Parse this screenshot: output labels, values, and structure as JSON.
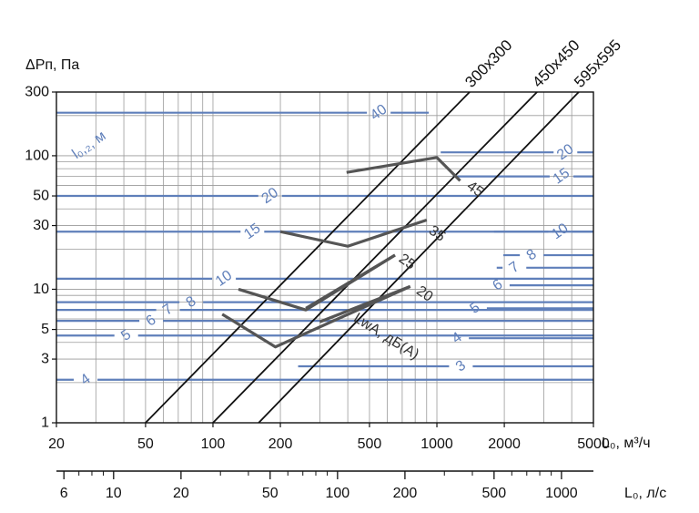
{
  "chart_data": {
    "type": "line",
    "title": "",
    "ylabel": "ΔPп, Па",
    "xlabel": "L₀, м³/ч",
    "x2label": "L₀, л/с",
    "xscale": "log",
    "yscale": "log",
    "xlim": [
      20,
      5000
    ],
    "ylim": [
      1,
      300
    ],
    "grid": true,
    "x_ticks": [
      {
        "value": 20,
        "label": "20"
      },
      {
        "value": 50,
        "label": "50"
      },
      {
        "value": 100,
        "label": "100"
      },
      {
        "value": 200,
        "label": "200"
      },
      {
        "value": 500,
        "label": "500"
      },
      {
        "value": 1000,
        "label": "1000"
      },
      {
        "value": 2000,
        "label": "2000"
      },
      {
        "value": 5000,
        "label": "5000"
      }
    ],
    "y_ticks": [
      {
        "value": 1,
        "label": "1"
      },
      {
        "value": 3,
        "label": "3"
      },
      {
        "value": 5,
        "label": "5"
      },
      {
        "value": 10,
        "label": "10"
      },
      {
        "value": 30,
        "label": "30"
      },
      {
        "value": 50,
        "label": "50"
      },
      {
        "value": 100,
        "label": "100"
      },
      {
        "value": 300,
        "label": "300"
      }
    ],
    "x2_ticks": [
      {
        "value": 6,
        "label": "6"
      },
      {
        "value": 10,
        "label": "10"
      },
      {
        "value": 20,
        "label": "20"
      },
      {
        "value": 50,
        "label": "50"
      },
      {
        "value": 100,
        "label": "100"
      },
      {
        "value": 200,
        "label": "200"
      },
      {
        "value": 500,
        "label": "500"
      },
      {
        "value": 1000,
        "label": "1000"
      }
    ],
    "x2_minor": [
      7,
      8,
      9,
      30,
      40,
      60,
      70,
      80,
      90,
      300,
      400,
      600,
      700,
      800,
      900
    ],
    "size_lines": [
      {
        "name": "300x300",
        "x": [
          50,
          1400
        ],
        "y": [
          1,
          300
        ]
      },
      {
        "name": "450x450",
        "x": [
          100,
          2800
        ],
        "y": [
          1,
          300
        ]
      },
      {
        "name": "595x595",
        "x": [
          160,
          4300
        ],
        "y": [
          1,
          300
        ]
      }
    ],
    "throw_lines": [
      {
        "label": "40",
        "y": 210,
        "x_start": 20,
        "x_end": 920,
        "label_x": 550
      },
      {
        "label": "20",
        "y": 106,
        "x_start": 1040,
        "x_end": 5000,
        "label_x": 3750
      },
      {
        "label": "20",
        "y": 50,
        "x_start": 20,
        "x_end": 5000,
        "label_x": 180
      },
      {
        "label": "15",
        "y": 70,
        "x_start": 1180,
        "x_end": 5000,
        "label_x": 3600
      },
      {
        "label": "15",
        "y": 27,
        "x_start": 20,
        "x_end": 5000,
        "label_x": 150
      },
      {
        "label": "10",
        "y": 27,
        "x_start": 1800,
        "x_end": 5000,
        "label_x": 3550
      },
      {
        "label": "10",
        "y": 12,
        "x_start": 20,
        "x_end": 5000,
        "label_x": 112
      },
      {
        "label": "8",
        "y": 18,
        "x_start": 1980,
        "x_end": 5000,
        "label_x": 2650
      },
      {
        "label": "8",
        "y": 8,
        "x_start": 20,
        "x_end": 5000,
        "label_x": 80
      },
      {
        "label": "7",
        "y": 14.5,
        "x_start": 1850,
        "x_end": 5000,
        "label_x": 2220
      },
      {
        "label": "7",
        "y": 7,
        "x_start": 20,
        "x_end": 5000,
        "label_x": 63
      },
      {
        "label": "6",
        "y": 10.7,
        "x_start": 1780,
        "x_end": 5000,
        "label_x": 1870
      },
      {
        "label": "6",
        "y": 5.8,
        "x_start": 20,
        "x_end": 5000,
        "label_x": 53
      },
      {
        "label": "5",
        "y": 7.2,
        "x_start": 1380,
        "x_end": 5000,
        "label_x": 1480
      },
      {
        "label": "5",
        "y": 4.5,
        "x_start": 20,
        "x_end": 5000,
        "label_x": 41
      },
      {
        "label": "4",
        "y": 4.3,
        "x_start": 1120,
        "x_end": 5000,
        "label_x": 1230
      },
      {
        "label": "4",
        "y": 2.1,
        "x_start": 20,
        "x_end": 5000,
        "label_x": 27
      },
      {
        "label": "3",
        "y": 2.65,
        "x_start": 240,
        "x_end": 5000,
        "label_x": 1280
      }
    ],
    "throw_title": {
      "text": "l₀,₂, м",
      "x": 28,
      "y": 120
    },
    "noise_lines": [
      {
        "label": "45",
        "x": [
          395,
          1000,
          1270
        ],
        "y": [
          75,
          97,
          65
        ],
        "label_at": [
          1480,
          56
        ]
      },
      {
        "label": "35",
        "x": [
          200,
          400,
          900
        ],
        "y": [
          27,
          21,
          33
        ],
        "label_at": [
          1000,
          26
        ]
      },
      {
        "label": "25",
        "x": [
          260,
          650
        ],
        "y": [
          7.2,
          18
        ],
        "label_at": [
          735,
          16
        ]
      },
      {
        "label": "20",
        "x": [
          300,
          760
        ],
        "y": [
          5.7,
          10.5
        ],
        "label_at": [
          880,
          9.2
        ]
      },
      {
        "label": "",
        "x": [
          130,
          260,
          650
        ],
        "y": [
          10,
          7,
          18
        ],
        "label_at": null
      },
      {
        "label": "",
        "x": [
          110,
          190,
          760
        ],
        "y": [
          6.5,
          3.7,
          10.5
        ],
        "label_at": null
      }
    ],
    "noise_title": {
      "text": "LwA, дБ(A)",
      "x": 430,
      "y": 6.2
    }
  }
}
